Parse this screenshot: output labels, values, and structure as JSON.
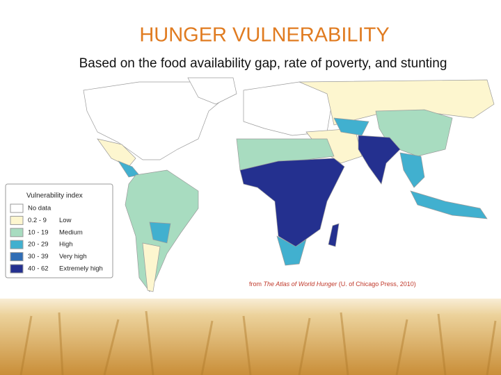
{
  "header": {
    "title": "HUNGER VULNERABILITY",
    "subtitle": "Based on the food availability gap, rate of poverty, and stunting"
  },
  "map": {
    "legend": {
      "title": "Vulnerability index",
      "items": [
        {
          "range": "No data",
          "label": "",
          "color": "#ffffff"
        },
        {
          "range": "0.2 - 9",
          "label": "Low",
          "color": "#fdf6cf"
        },
        {
          "range": "10 - 19",
          "label": "Medium",
          "color": "#a8dcc0"
        },
        {
          "range": "20 - 29",
          "label": "High",
          "color": "#41b0cf"
        },
        {
          "range": "30 - 39",
          "label": "Very high",
          "color": "#2f6db5"
        },
        {
          "range": "40 - 62",
          "label": "Extremely high",
          "color": "#24308f"
        }
      ]
    },
    "source": {
      "prefix": "from",
      "book": "The Atlas of World Hunger",
      "publisher": "(U. of Chicago Press, 2010)"
    }
  }
}
